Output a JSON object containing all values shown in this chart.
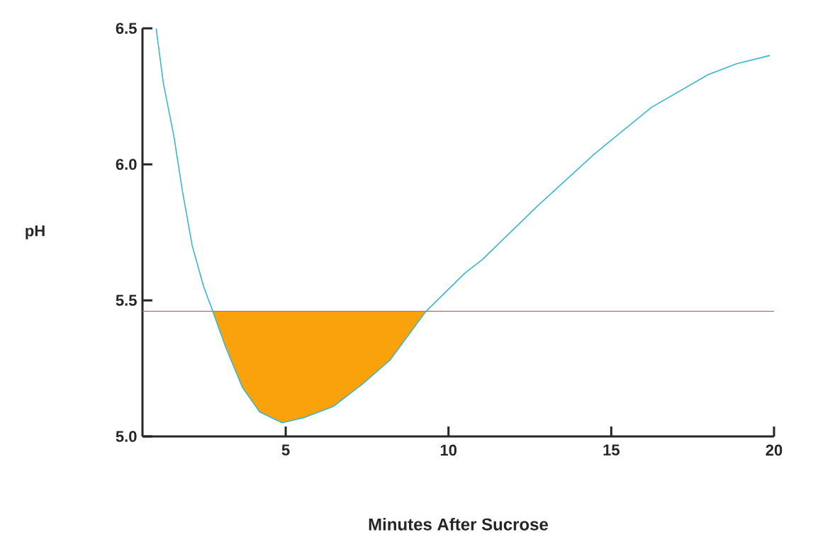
{
  "chart_data": {
    "type": "line",
    "xlabel": "Minutes After Sucrose",
    "ylabel": "pH",
    "xlim": [
      0.6,
      20
    ],
    "ylim": [
      5.0,
      6.5
    ],
    "xticks": [
      5,
      10,
      15,
      20
    ],
    "yticks": [
      {
        "value": 5.0,
        "label": "5.0"
      },
      {
        "value": 5.5,
        "label": "5.5"
      },
      {
        "value": 6.0,
        "label": "6.0"
      },
      {
        "value": 6.5,
        "label": "6.5"
      }
    ],
    "grid": false,
    "marker": "none",
    "line_style": "solid",
    "ref_lines": [
      {
        "axis": "y",
        "value": 5.46,
        "color": "#c8646e"
      }
    ],
    "series": [
      {
        "color": "#3bb6d0",
        "x": [
          1.02,
          1.24,
          1.57,
          1.83,
          2.13,
          2.48,
          2.76,
          3.15,
          3.67,
          4.2,
          4.89,
          5.59,
          6.46,
          7.33,
          8.2,
          9.31,
          10.5,
          11.04,
          12.76,
          14.5,
          16.24,
          17.98,
          18.85,
          19.87
        ],
        "values": [
          6.5,
          6.3,
          6.1,
          5.9,
          5.7,
          5.55,
          5.46,
          5.33,
          5.18,
          5.09,
          5.05,
          5.07,
          5.11,
          5.19,
          5.28,
          5.46,
          5.6,
          5.65,
          5.85,
          6.04,
          6.21,
          6.33,
          6.37,
          6.4
        ]
      },
      {
        "type": "area",
        "color": "#f9a20c",
        "x": [
          2.76,
          3.15,
          3.67,
          4.2,
          4.89,
          5.59,
          6.46,
          7.33,
          8.2,
          9.31
        ],
        "values": [
          5.46,
          5.33,
          5.18,
          5.09,
          5.05,
          5.07,
          5.11,
          5.19,
          5.28,
          5.46
        ]
      }
    ]
  }
}
